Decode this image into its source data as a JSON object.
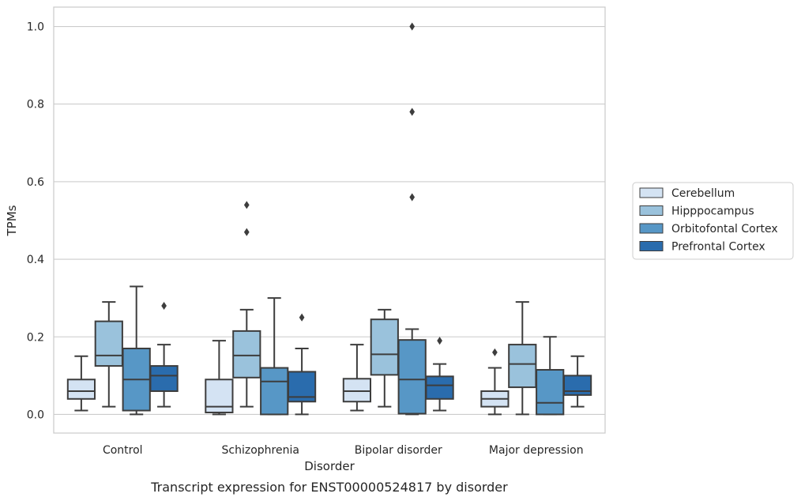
{
  "chart_data": {
    "type": "box",
    "title": "",
    "caption": "Transcript expression for ENST00000524817 by disorder",
    "xlabel": "Disorder",
    "ylabel": "TPMs",
    "ylim": [
      -0.048,
      1.05
    ],
    "yticks": [
      0.0,
      0.2,
      0.4,
      0.6,
      0.8,
      1.0
    ],
    "ytick_labels": [
      "0.0",
      "0.2",
      "0.4",
      "0.6",
      "0.8",
      "1.0"
    ],
    "grid": "horizontal",
    "legend_position": "right",
    "categories": [
      "Control",
      "Schizophrenia",
      "Bipolar disorder",
      "Major depression"
    ],
    "series": [
      {
        "name": "Cerebellum",
        "color": "#d4e3f3",
        "boxes": [
          {
            "whisker_low": 0.01,
            "q1": 0.04,
            "median": 0.06,
            "q3": 0.09,
            "whisker_high": 0.15,
            "outliers": []
          },
          {
            "whisker_low": 0.0,
            "q1": 0.005,
            "median": 0.02,
            "q3": 0.09,
            "whisker_high": 0.19,
            "outliers": []
          },
          {
            "whisker_low": 0.01,
            "q1": 0.033,
            "median": 0.06,
            "q3": 0.092,
            "whisker_high": 0.18,
            "outliers": []
          },
          {
            "whisker_low": 0.0,
            "q1": 0.02,
            "median": 0.04,
            "q3": 0.06,
            "whisker_high": 0.12,
            "outliers": [
              0.16
            ]
          }
        ]
      },
      {
        "name": "Hipppocampus",
        "color": "#9ac2dc",
        "boxes": [
          {
            "whisker_low": 0.02,
            "q1": 0.125,
            "median": 0.152,
            "q3": 0.24,
            "whisker_high": 0.29,
            "outliers": []
          },
          {
            "whisker_low": 0.02,
            "q1": 0.095,
            "median": 0.152,
            "q3": 0.215,
            "whisker_high": 0.27,
            "outliers": [
              0.47,
              0.54
            ]
          },
          {
            "whisker_low": 0.02,
            "q1": 0.102,
            "median": 0.155,
            "q3": 0.245,
            "whisker_high": 0.27,
            "outliers": []
          },
          {
            "whisker_low": 0.0,
            "q1": 0.07,
            "median": 0.13,
            "q3": 0.18,
            "whisker_high": 0.29,
            "outliers": []
          }
        ]
      },
      {
        "name": "Orbitofontal Cortex",
        "color": "#5797c6",
        "boxes": [
          {
            "whisker_low": 0.0,
            "q1": 0.01,
            "median": 0.09,
            "q3": 0.17,
            "whisker_high": 0.33,
            "outliers": []
          },
          {
            "whisker_low": 0.0,
            "q1": 0.0,
            "median": 0.085,
            "q3": 0.12,
            "whisker_high": 0.3,
            "outliers": []
          },
          {
            "whisker_low": 0.0,
            "q1": 0.002,
            "median": 0.09,
            "q3": 0.192,
            "whisker_high": 0.22,
            "outliers": [
              0.56,
              0.78,
              1.0
            ]
          },
          {
            "whisker_low": 0.0,
            "q1": 0.0,
            "median": 0.03,
            "q3": 0.115,
            "whisker_high": 0.2,
            "outliers": []
          }
        ]
      },
      {
        "name": "Prefrontal Cortex",
        "color": "#2a6cad",
        "boxes": [
          {
            "whisker_low": 0.02,
            "q1": 0.06,
            "median": 0.1,
            "q3": 0.125,
            "whisker_high": 0.18,
            "outliers": [
              0.28
            ]
          },
          {
            "whisker_low": 0.0,
            "q1": 0.033,
            "median": 0.045,
            "q3": 0.11,
            "whisker_high": 0.17,
            "outliers": [
              0.25
            ]
          },
          {
            "whisker_low": 0.01,
            "q1": 0.04,
            "median": 0.075,
            "q3": 0.098,
            "whisker_high": 0.13,
            "outliers": [
              0.19
            ]
          },
          {
            "whisker_low": 0.02,
            "q1": 0.05,
            "median": 0.06,
            "q3": 0.1,
            "whisker_high": 0.15,
            "outliers": []
          }
        ]
      }
    ]
  }
}
